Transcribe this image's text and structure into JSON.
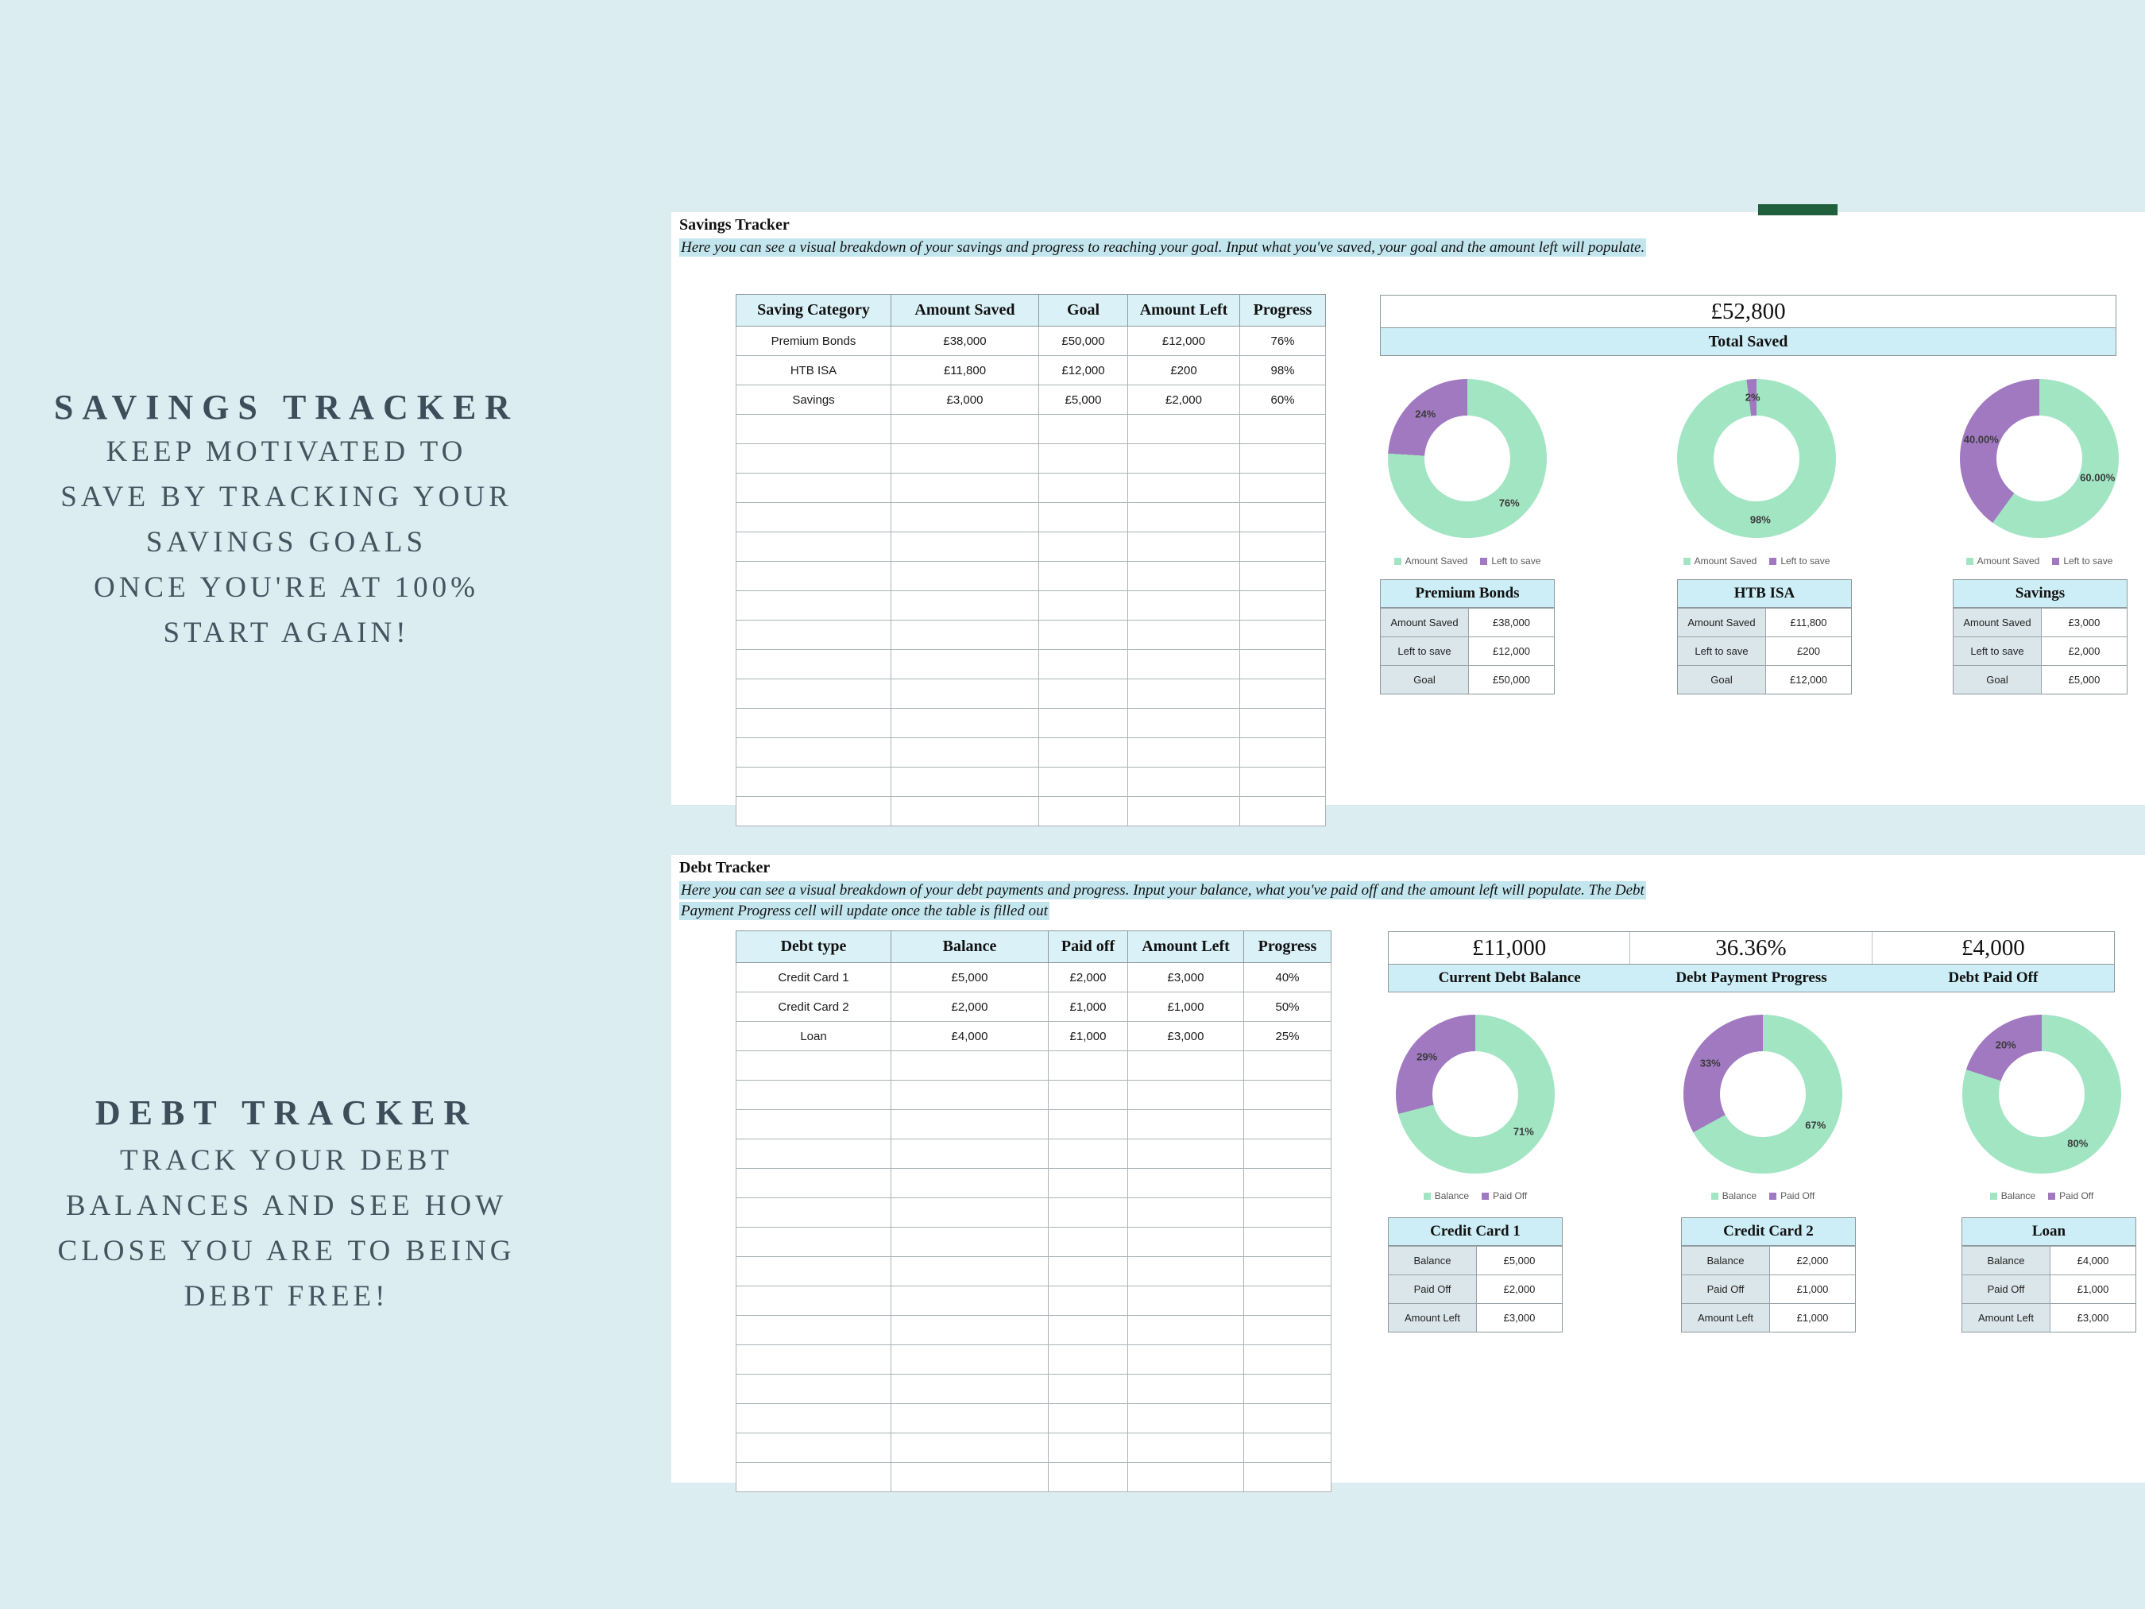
{
  "colors": {
    "background": "#dcedf2",
    "panel": "#ffffff",
    "mint": "#a2e5c3",
    "purple": "#a179c1",
    "highlight": "#c3e5ee",
    "header_fill": "#d9f1f7",
    "bar_fill": "#cdeef6",
    "label_fill": "#dbe6ea",
    "heading_text": "#3d4e5a",
    "tab_green": "#1f5f3c"
  },
  "left_panel": {
    "savings": {
      "heading": "SAVINGS TRACKER",
      "body": "KEEP MOTIVATED TO\nSAVE BY TRACKING YOUR\nSAVINGS GOALS\nONCE YOU'RE AT 100%\nSTART AGAIN!"
    },
    "debt": {
      "heading": "DEBT TRACKER",
      "body": "TRACK YOUR DEBT\nBALANCES AND SEE HOW\nCLOSE YOU ARE TO BEING\nDEBT FREE!"
    }
  },
  "savings_sheet": {
    "title": "Savings Tracker",
    "description": "Here you can see a visual breakdown of your savings and progress to reaching your goal. Input what you've saved, your goal and the amount left will populate.",
    "table": {
      "headers": [
        "Saving Category",
        "Amount Saved",
        "Goal",
        "Amount Left",
        "Progress"
      ],
      "rows": [
        [
          "Premium Bonds",
          "£38,000",
          "£50,000",
          "£12,000",
          "76%"
        ],
        [
          "HTB ISA",
          "£11,800",
          "£12,000",
          "£200",
          "98%"
        ],
        [
          "Savings",
          "£3,000",
          "£5,000",
          "£2,000",
          "60%"
        ]
      ],
      "empty_rows": 14
    },
    "total": {
      "value": "£52,800",
      "label": "Total Saved"
    },
    "legend": [
      {
        "label": "Amount Saved",
        "color": "mint"
      },
      {
        "label": "Left to save",
        "color": "purple"
      }
    ],
    "charts": [
      {
        "name": "Premium Bonds",
        "type": "doughnut",
        "segments": [
          {
            "series": "Amount Saved",
            "pct": 76,
            "label": "76%",
            "color": "mint"
          },
          {
            "series": "Left to save",
            "pct": 24,
            "label": "24%",
            "color": "purple"
          }
        ]
      },
      {
        "name": "HTB ISA",
        "type": "doughnut",
        "segments": [
          {
            "series": "Amount Saved",
            "pct": 98,
            "label": "98%",
            "color": "mint"
          },
          {
            "series": "Left to save",
            "pct": 2,
            "label": "2%",
            "color": "purple"
          }
        ]
      },
      {
        "name": "Savings",
        "type": "doughnut",
        "segments": [
          {
            "series": "Amount Saved",
            "pct": 60,
            "label": "60.00%",
            "color": "mint"
          },
          {
            "series": "Left to save",
            "pct": 40,
            "label": "40.00%",
            "color": "purple"
          }
        ]
      }
    ],
    "mini_tables": [
      {
        "title": "Premium Bonds",
        "rows": [
          [
            "Amount Saved",
            "£38,000"
          ],
          [
            "Left to save",
            "£12,000"
          ],
          [
            "Goal",
            "£50,000"
          ]
        ]
      },
      {
        "title": "HTB ISA",
        "rows": [
          [
            "Amount Saved",
            "£11,800"
          ],
          [
            "Left to save",
            "£200"
          ],
          [
            "Goal",
            "£12,000"
          ]
        ]
      },
      {
        "title": "Savings",
        "rows": [
          [
            "Amount Saved",
            "£3,000"
          ],
          [
            "Left to save",
            "£2,000"
          ],
          [
            "Goal",
            "£5,000"
          ]
        ]
      }
    ]
  },
  "debt_sheet": {
    "title": "Debt Tracker",
    "description": "Here you can see a visual breakdown of your debt payments and progress. Input your balance, what you've paid off and the amount left will populate. The Debt Payment Progress cell will update once the table is filled out",
    "table": {
      "headers": [
        "Debt type",
        "Balance",
        "Paid off",
        "Amount Left",
        "Progress"
      ],
      "rows": [
        [
          "Credit Card 1",
          "£5,000",
          "£2,000",
          "£3,000",
          "40%"
        ],
        [
          "Credit Card 2",
          "£2,000",
          "£1,000",
          "£1,000",
          "50%"
        ],
        [
          "Loan",
          "£4,000",
          "£1,000",
          "£3,000",
          "25%"
        ]
      ],
      "empty_rows": 15
    },
    "summary": [
      {
        "value": "£11,000",
        "label": "Current Debt Balance"
      },
      {
        "value": "36.36%",
        "label": "Debt Payment Progress"
      },
      {
        "value": "£4,000",
        "label": "Debt Paid Off"
      }
    ],
    "legend": [
      {
        "label": "Balance",
        "color": "mint"
      },
      {
        "label": "Paid Off",
        "color": "purple"
      }
    ],
    "charts": [
      {
        "name": "Credit Card 1",
        "type": "doughnut",
        "segments": [
          {
            "series": "Balance",
            "pct": 71,
            "label": "71%",
            "color": "mint"
          },
          {
            "series": "Paid Off",
            "pct": 29,
            "label": "29%",
            "color": "purple"
          }
        ]
      },
      {
        "name": "Credit Card 2",
        "type": "doughnut",
        "segments": [
          {
            "series": "Balance",
            "pct": 67,
            "label": "67%",
            "color": "mint"
          },
          {
            "series": "Paid Off",
            "pct": 33,
            "label": "33%",
            "color": "purple"
          }
        ]
      },
      {
        "name": "Loan",
        "type": "doughnut",
        "segments": [
          {
            "series": "Balance",
            "pct": 80,
            "label": "80%",
            "color": "mint"
          },
          {
            "series": "Paid Off",
            "pct": 20,
            "label": "20%",
            "color": "purple"
          }
        ]
      }
    ],
    "mini_tables": [
      {
        "title": "Credit Card 1",
        "rows": [
          [
            "Balance",
            "£5,000"
          ],
          [
            "Paid Off",
            "£2,000"
          ],
          [
            "Amount Left",
            "£3,000"
          ]
        ]
      },
      {
        "title": "Credit Card 2",
        "rows": [
          [
            "Balance",
            "£2,000"
          ],
          [
            "Paid Off",
            "£1,000"
          ],
          [
            "Amount Left",
            "£1,000"
          ]
        ]
      },
      {
        "title": "Loan",
        "rows": [
          [
            "Balance",
            "£4,000"
          ],
          [
            "Paid Off",
            "£1,000"
          ],
          [
            "Amount Left",
            "£3,000"
          ]
        ]
      }
    ]
  }
}
